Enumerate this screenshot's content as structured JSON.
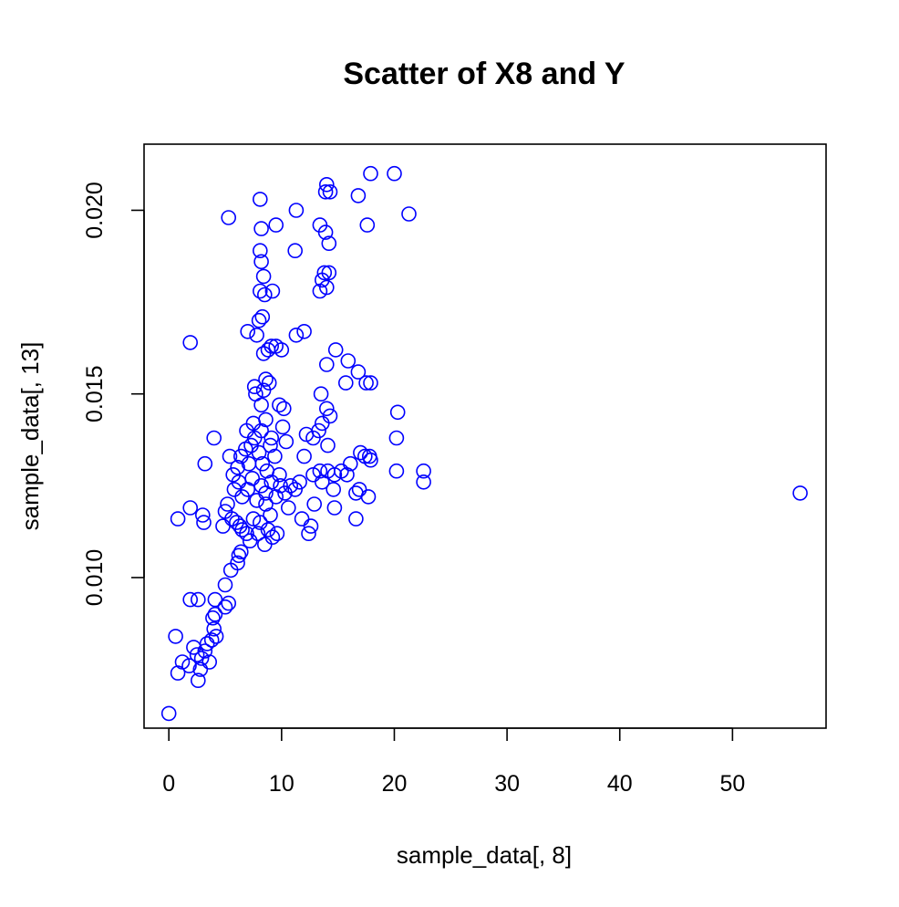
{
  "chart_data": {
    "type": "scatter",
    "title": "Scatter of X8 and Y",
    "xlabel": "sample_data[, 8]",
    "ylabel": "sample_data[, 13]",
    "xlim": [
      -2.2,
      58.3
    ],
    "ylim": [
      0.0059,
      0.0218
    ],
    "x_ticks": [
      0,
      10,
      20,
      30,
      40,
      50
    ],
    "x_tick_labels": [
      "0",
      "10",
      "20",
      "30",
      "40",
      "50"
    ],
    "y_ticks": [
      0.01,
      0.015,
      0.02
    ],
    "y_tick_labels": [
      "0.010",
      "0.015",
      "0.020"
    ],
    "grid": false,
    "point_style": "open-circle",
    "colors": {
      "points": "#0000ff",
      "frame": "#000000"
    },
    "points": [
      [
        0.0,
        0.0063
      ],
      [
        0.8,
        0.0074
      ],
      [
        0.6,
        0.0084
      ],
      [
        1.2,
        0.0077
      ],
      [
        1.8,
        0.0076
      ],
      [
        2.2,
        0.0081
      ],
      [
        2.5,
        0.0079
      ],
      [
        2.6,
        0.0072
      ],
      [
        2.8,
        0.0075
      ],
      [
        2.9,
        0.0078
      ],
      [
        3.2,
        0.008
      ],
      [
        3.4,
        0.0082
      ],
      [
        3.6,
        0.0077
      ],
      [
        3.8,
        0.0083
      ],
      [
        4.0,
        0.0086
      ],
      [
        4.2,
        0.0084
      ],
      [
        3.9,
        0.0089
      ],
      [
        4.1,
        0.009
      ],
      [
        1.9,
        0.0094
      ],
      [
        2.6,
        0.0094
      ],
      [
        4.1,
        0.0094
      ],
      [
        5.0,
        0.0092
      ],
      [
        5.3,
        0.0093
      ],
      [
        5.0,
        0.0098
      ],
      [
        5.5,
        0.0102
      ],
      [
        6.1,
        0.0104
      ],
      [
        6.2,
        0.0106
      ],
      [
        6.4,
        0.0107
      ],
      [
        0.8,
        0.0116
      ],
      [
        1.9,
        0.0119
      ],
      [
        3.0,
        0.0117
      ],
      [
        3.1,
        0.0115
      ],
      [
        4.8,
        0.0114
      ],
      [
        5.0,
        0.0118
      ],
      [
        5.2,
        0.012
      ],
      [
        5.6,
        0.0116
      ],
      [
        6.0,
        0.0115
      ],
      [
        6.3,
        0.0114
      ],
      [
        6.5,
        0.0113
      ],
      [
        6.9,
        0.0112
      ],
      [
        7.2,
        0.011
      ],
      [
        7.5,
        0.0116
      ],
      [
        7.9,
        0.0112
      ],
      [
        8.1,
        0.0115
      ],
      [
        8.5,
        0.0109
      ],
      [
        8.8,
        0.0113
      ],
      [
        9.2,
        0.0111
      ],
      [
        9.6,
        0.0112
      ],
      [
        9.0,
        0.0117
      ],
      [
        8.6,
        0.012
      ],
      [
        5.8,
        0.0124
      ],
      [
        6.2,
        0.0126
      ],
      [
        6.5,
        0.0122
      ],
      [
        7.0,
        0.0124
      ],
      [
        7.4,
        0.0127
      ],
      [
        7.8,
        0.0121
      ],
      [
        8.2,
        0.0125
      ],
      [
        8.6,
        0.0123
      ],
      [
        9.1,
        0.0126
      ],
      [
        9.5,
        0.0122
      ],
      [
        9.9,
        0.0125
      ],
      [
        10.3,
        0.0123
      ],
      [
        10.8,
        0.0125
      ],
      [
        11.2,
        0.0124
      ],
      [
        11.6,
        0.0126
      ],
      [
        10.6,
        0.0119
      ],
      [
        11.8,
        0.0116
      ],
      [
        12.4,
        0.0112
      ],
      [
        12.6,
        0.0114
      ],
      [
        12.9,
        0.012
      ],
      [
        5.4,
        0.0133
      ],
      [
        5.7,
        0.0128
      ],
      [
        6.1,
        0.013
      ],
      [
        6.4,
        0.0133
      ],
      [
        6.8,
        0.0135
      ],
      [
        7.1,
        0.0131
      ],
      [
        7.3,
        0.0136
      ],
      [
        7.6,
        0.0138
      ],
      [
        8.0,
        0.0134
      ],
      [
        8.3,
        0.0131
      ],
      [
        8.7,
        0.0129
      ],
      [
        9.0,
        0.0136
      ],
      [
        9.4,
        0.0133
      ],
      [
        9.8,
        0.0128
      ],
      [
        6.9,
        0.014
      ],
      [
        7.5,
        0.0142
      ],
      [
        8.2,
        0.014
      ],
      [
        8.6,
        0.0143
      ],
      [
        9.1,
        0.0138
      ],
      [
        10.1,
        0.0141
      ],
      [
        10.4,
        0.0137
      ],
      [
        12.0,
        0.0133
      ],
      [
        12.2,
        0.0139
      ],
      [
        12.8,
        0.0138
      ],
      [
        13.3,
        0.014
      ],
      [
        13.6,
        0.0142
      ],
      [
        14.1,
        0.0136
      ],
      [
        14.0,
        0.0146
      ],
      [
        13.5,
        0.015
      ],
      [
        14.3,
        0.0144
      ],
      [
        4.0,
        0.0138
      ],
      [
        3.2,
        0.0131
      ],
      [
        9.8,
        0.0147
      ],
      [
        10.2,
        0.0146
      ],
      [
        7.7,
        0.015
      ],
      [
        7.6,
        0.0152
      ],
      [
        8.2,
        0.0147
      ],
      [
        8.4,
        0.0151
      ],
      [
        8.6,
        0.0154
      ],
      [
        8.9,
        0.0153
      ],
      [
        1.9,
        0.0164
      ],
      [
        7.0,
        0.0167
      ],
      [
        7.8,
        0.0166
      ],
      [
        8.0,
        0.017
      ],
      [
        8.3,
        0.0171
      ],
      [
        8.4,
        0.0161
      ],
      [
        8.8,
        0.0162
      ],
      [
        9.1,
        0.0163
      ],
      [
        9.5,
        0.0163
      ],
      [
        10.0,
        0.0162
      ],
      [
        11.3,
        0.0166
      ],
      [
        12.0,
        0.0167
      ],
      [
        14.8,
        0.0162
      ],
      [
        15.9,
        0.0159
      ],
      [
        14.0,
        0.0158
      ],
      [
        15.7,
        0.0153
      ],
      [
        16.8,
        0.0156
      ],
      [
        17.5,
        0.0153
      ],
      [
        17.9,
        0.0153
      ],
      [
        20.3,
        0.0145
      ],
      [
        20.2,
        0.0138
      ],
      [
        17.0,
        0.0134
      ],
      [
        17.4,
        0.0133
      ],
      [
        17.8,
        0.0133
      ],
      [
        17.9,
        0.0132
      ],
      [
        16.1,
        0.0131
      ],
      [
        15.8,
        0.0128
      ],
      [
        15.3,
        0.0129
      ],
      [
        14.7,
        0.0128
      ],
      [
        14.1,
        0.0129
      ],
      [
        13.4,
        0.0129
      ],
      [
        12.8,
        0.0128
      ],
      [
        13.6,
        0.0126
      ],
      [
        14.6,
        0.0124
      ],
      [
        16.6,
        0.0123
      ],
      [
        16.9,
        0.0124
      ],
      [
        17.7,
        0.0122
      ],
      [
        20.2,
        0.0129
      ],
      [
        22.6,
        0.0129
      ],
      [
        22.6,
        0.0126
      ],
      [
        14.7,
        0.0119
      ],
      [
        16.6,
        0.0116
      ],
      [
        56.0,
        0.0123
      ],
      [
        8.1,
        0.0178
      ],
      [
        8.5,
        0.0177
      ],
      [
        9.2,
        0.0178
      ],
      [
        8.4,
        0.0182
      ],
      [
        8.2,
        0.0186
      ],
      [
        8.1,
        0.0189
      ],
      [
        8.2,
        0.0195
      ],
      [
        8.1,
        0.0203
      ],
      [
        9.5,
        0.0196
      ],
      [
        5.3,
        0.0198
      ],
      [
        11.3,
        0.02
      ],
      [
        11.2,
        0.0189
      ],
      [
        13.4,
        0.0178
      ],
      [
        13.6,
        0.0181
      ],
      [
        13.8,
        0.0183
      ],
      [
        14.0,
        0.0179
      ],
      [
        14.2,
        0.0183
      ],
      [
        13.4,
        0.0196
      ],
      [
        13.9,
        0.0194
      ],
      [
        14.2,
        0.0191
      ],
      [
        13.9,
        0.0205
      ],
      [
        14.3,
        0.0205
      ],
      [
        14.0,
        0.0207
      ],
      [
        16.8,
        0.0204
      ],
      [
        17.6,
        0.0196
      ],
      [
        17.9,
        0.021
      ],
      [
        20.0,
        0.021
      ],
      [
        21.3,
        0.0199
      ]
    ]
  }
}
